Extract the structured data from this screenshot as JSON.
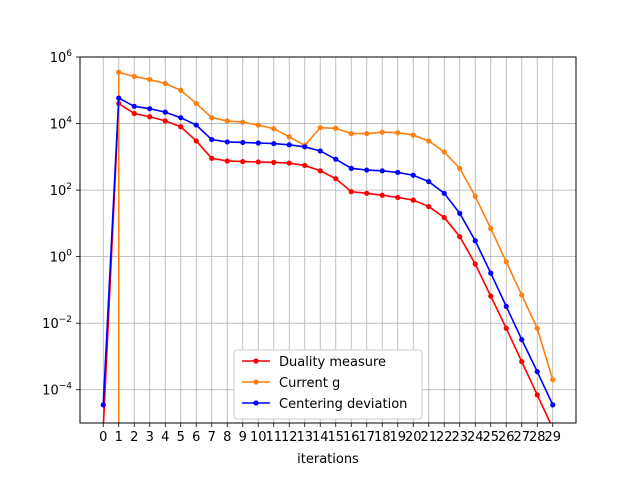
{
  "chart_data": {
    "type": "line",
    "xlabel": "iterations",
    "ylabel": "",
    "title": "",
    "y_scale": "log",
    "ylim": [
      1e-05,
      1000000.0
    ],
    "xlim": [
      -1.5,
      30.5
    ],
    "grid": true,
    "legend_placement": "lower center",
    "x": [
      0,
      1,
      2,
      3,
      4,
      5,
      6,
      7,
      8,
      9,
      10,
      11,
      12,
      13,
      14,
      15,
      16,
      17,
      18,
      19,
      20,
      21,
      22,
      23,
      24,
      25,
      26,
      27,
      28,
      29
    ],
    "x_tick_labels": [
      "0",
      "1",
      "2",
      "3",
      "4",
      "5",
      "6",
      "7",
      "8",
      "9",
      "10",
      "11",
      "12",
      "13",
      "14",
      "15",
      "16",
      "17",
      "18",
      "19",
      "20",
      "21",
      "22",
      "23",
      "24",
      "25",
      "26",
      "27",
      "28",
      "29"
    ],
    "y_ticks": [
      {
        "value": 0.0001,
        "base": "10",
        "exp": "−4"
      },
      {
        "value": 0.01,
        "base": "10",
        "exp": "−2"
      },
      {
        "value": 1.0,
        "base": "10",
        "exp": "0"
      },
      {
        "value": 100.0,
        "base": "10",
        "exp": "2"
      },
      {
        "value": 10000.0,
        "base": "10",
        "exp": "4"
      },
      {
        "value": 1000000.0,
        "base": "10",
        "exp": "6"
      }
    ],
    "series": [
      {
        "name": "Duality measure",
        "color": "#ff0000",
        "values": [
          7e-06,
          40000.0,
          20000.0,
          16000.0,
          12000.0,
          8000.0,
          3000.0,
          900,
          750,
          720,
          700,
          680,
          650,
          550,
          380,
          220,
          90,
          80,
          70,
          60,
          50,
          32,
          15,
          4,
          0.6,
          0.065,
          0.007,
          0.0007,
          7e-05,
          7e-06
        ]
      },
      {
        "name": "Current g",
        "color": "#ff7f0e",
        "values": [
          null,
          350000.0,
          260000.0,
          210000.0,
          160000.0,
          100000.0,
          40000.0,
          15000.0,
          12000.0,
          11000.0,
          9000.0,
          7000.0,
          4000.0,
          2200.0,
          7500.0,
          7200.0,
          5000.0,
          5000.0,
          5500.0,
          5300.0,
          4500.0,
          3000.0,
          1400.0,
          450,
          65,
          7,
          0.7,
          0.07,
          0.007,
          0.0002
        ],
        "drop_to_axis_at_x": 1
      },
      {
        "name": "Centering deviation",
        "color": "#0000ff",
        "values": [
          3.5e-05,
          58000.0,
          33000.0,
          28000.0,
          22000.0,
          15000.0,
          9000.0,
          3300.0,
          2800.0,
          2700.0,
          2600.0,
          2500.0,
          2300.0,
          2000.0,
          1500.0,
          850,
          450,
          400,
          380,
          340,
          280,
          180,
          80,
          20,
          3,
          0.32,
          0.032,
          0.0032,
          0.00035,
          3.5e-05
        ]
      }
    ]
  }
}
